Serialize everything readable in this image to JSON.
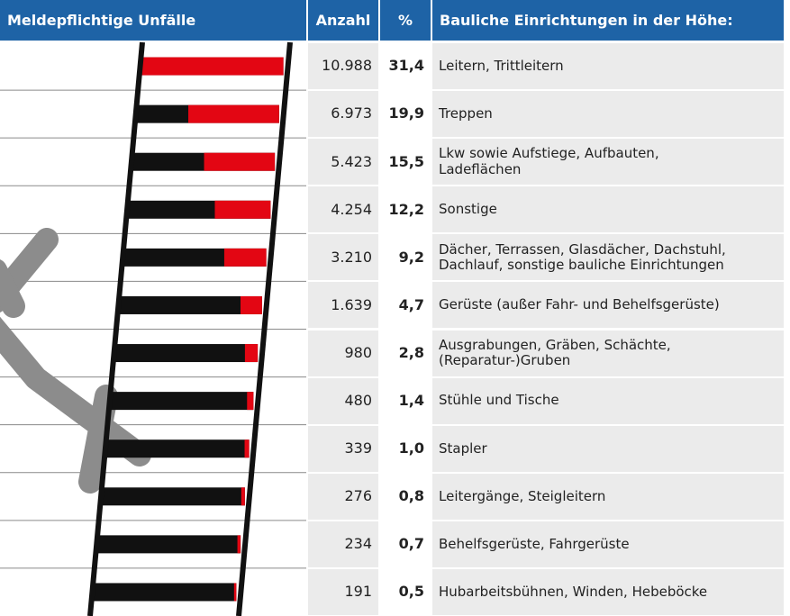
{
  "chart_data": {
    "type": "bar",
    "title": "Meldepflichtige Unfälle",
    "category_header": "Bauliche Einrichtungen in der Höhe:",
    "categories": [
      "Leitern, Trittleitern",
      "Treppen",
      "Lkw sowie Aufstiege, Aufbauten,\nLadeflächen",
      "Sonstige",
      "Dächer, Terrassen, Glasdächer, Dachstuhl,\nDachlauf, sonstige bauliche Einrichtungen",
      "Gerüste (außer Fahr- und Behelfsgerüste)",
      "Ausgrabungen, Gräben, Schächte,\n(Reparatur-)Gruben",
      "Stühle und Tische",
      "Stapler",
      "Leitergänge, Steigleitern",
      "Behelfsgerüste, Fahrgerüste",
      "Hubarbeitsbühnen, Winden, Hebeböcke"
    ],
    "series": [
      {
        "name": "Anzahl",
        "values": [
          10988,
          6973,
          5423,
          4254,
          3210,
          1639,
          980,
          480,
          339,
          276,
          234,
          191
        ],
        "value_labels": [
          "10.988",
          "6.973",
          "5.423",
          "4.254",
          "3.210",
          "1.639",
          "980",
          "480",
          "339",
          "276",
          "234",
          "191"
        ]
      },
      {
        "name": "%",
        "color": "#e30613",
        "values": [
          31.4,
          19.9,
          15.5,
          12.2,
          9.2,
          4.7,
          2.8,
          1.4,
          1.0,
          0.8,
          0.7,
          0.5
        ],
        "value_labels": [
          "31,4",
          "19,9",
          "15,5",
          "12,2",
          "9,2",
          "4,7",
          "2,8",
          "1,4",
          "1,0",
          "0,8",
          "0,7",
          "0,5"
        ]
      }
    ]
  }
}
